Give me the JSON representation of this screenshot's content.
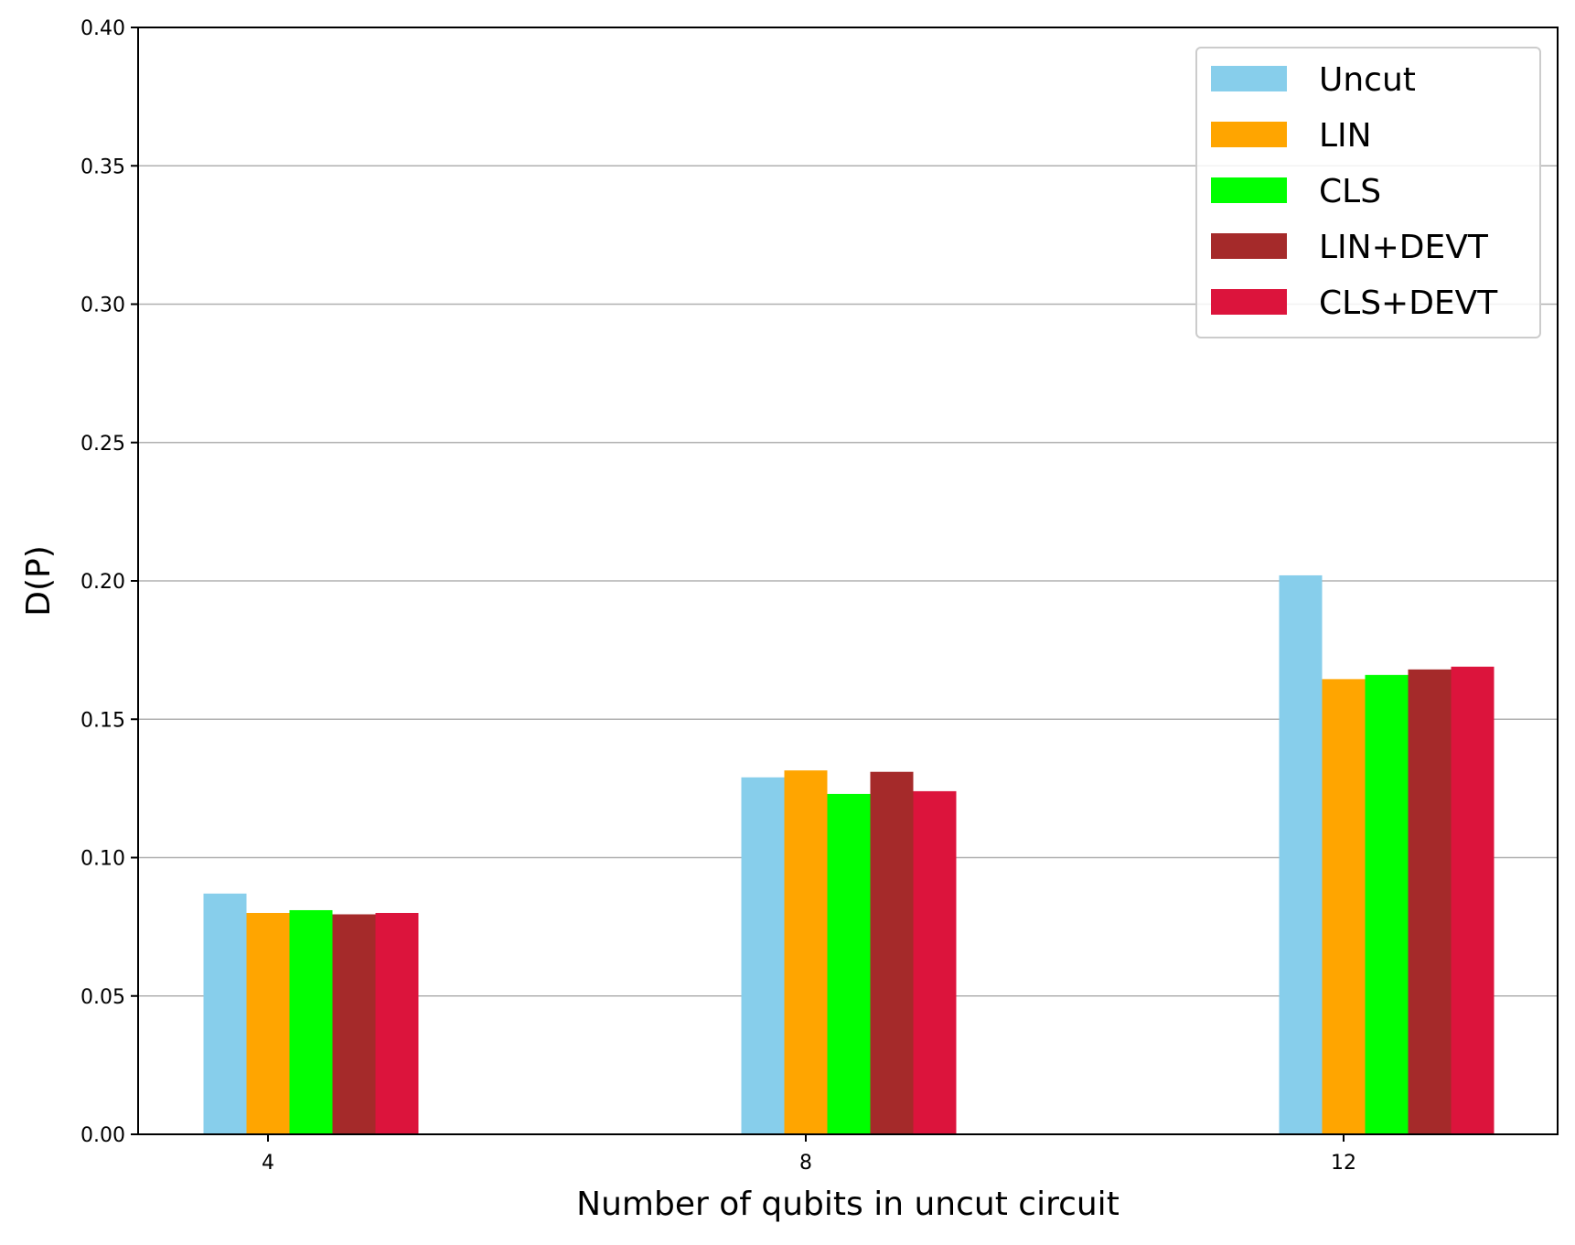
{
  "chart_data": {
    "type": "bar",
    "title": "",
    "xlabel": "Number of qubits in uncut circuit",
    "ylabel": "D(P)",
    "categories": [
      "4",
      "8",
      "12"
    ],
    "ylim": [
      0,
      0.4
    ],
    "yticks": [
      "0.00",
      "0.05",
      "0.10",
      "0.15",
      "0.20",
      "0.25",
      "0.30",
      "0.35",
      "0.40"
    ],
    "grid": "horizontal",
    "legend_position": "top-right",
    "series": [
      {
        "name": "Uncut",
        "color": "#87ceeb",
        "values": [
          0.087,
          0.129,
          0.202
        ]
      },
      {
        "name": "LIN",
        "color": "#ffa500",
        "values": [
          0.08,
          0.1315,
          0.1645
        ]
      },
      {
        "name": "CLS",
        "color": "#00ff00",
        "values": [
          0.081,
          0.123,
          0.166
        ]
      },
      {
        "name": "LIN+DEVT",
        "color": "#a52a2a",
        "values": [
          0.0795,
          0.131,
          0.168
        ]
      },
      {
        "name": "CLS+DEVT",
        "color": "#dc143c",
        "values": [
          0.08,
          0.124,
          0.169
        ]
      }
    ]
  }
}
